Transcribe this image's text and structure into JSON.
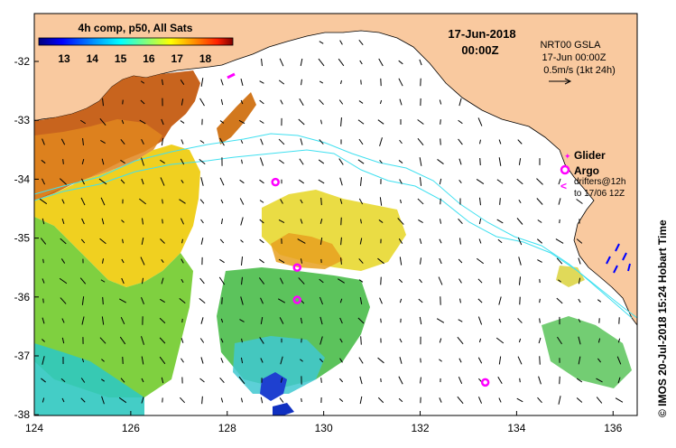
{
  "colorbar": {
    "title": "4h comp, p50, All Sats",
    "ticks": [
      "13",
      "14",
      "15",
      "16",
      "17",
      "18"
    ],
    "colors": [
      "#00007f",
      "#0000ff",
      "#007fff",
      "#00ffff",
      "#7fff7f",
      "#ffff00",
      "#ff7f00",
      "#ff0000",
      "#7f0000"
    ]
  },
  "date": {
    "line1": "17-Jun-2018",
    "line2": "00:00Z"
  },
  "info": {
    "line1": "NRT00 GSLA",
    "line2": "17-Jun 00:00Z",
    "line3": "0.5m/s (1kt 24h)"
  },
  "legend": {
    "glider": "Glider",
    "argo": "Argo",
    "drifters1": "drifters@12h",
    "drifters2": "to 17/06 12Z"
  },
  "credit": "© IMOS 20-Jul-2018 15:24 Hobart Time",
  "axes": {
    "x_ticks": [
      "124",
      "126",
      "128",
      "130",
      "132",
      "134",
      "136"
    ],
    "y_ticks": [
      "-32",
      "-33",
      "-34",
      "-35",
      "-36",
      "-37",
      "-38"
    ]
  },
  "argo_floats": [
    {
      "lon": 129.0,
      "lat": -34.05
    },
    {
      "lon": 129.45,
      "lat": -35.5
    },
    {
      "lon": 129.45,
      "lat": -36.05
    },
    {
      "lon": 133.35,
      "lat": -37.45
    }
  ],
  "colors": {
    "land": "#f9c99f",
    "ocean": "#ffffff",
    "contour": "#40e0f0",
    "argo": "#ff00ff"
  }
}
